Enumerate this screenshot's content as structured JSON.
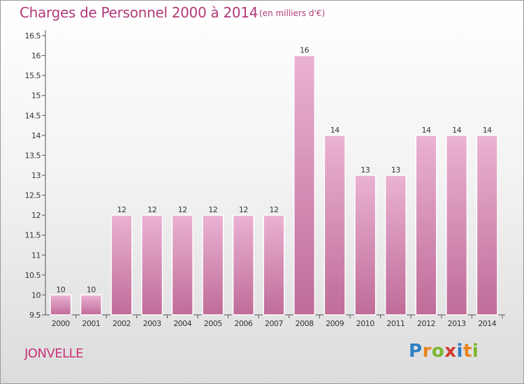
{
  "title": "Charges de Personnel 2000 à 2014",
  "subtitle": "(en milliers d'€)",
  "place": "JONVELLE",
  "brand": {
    "letters": [
      "P",
      "r",
      "o",
      "x",
      "i",
      "t",
      "i"
    ],
    "colors": [
      "#2e7fc4",
      "#e8841c",
      "#7ab82e",
      "#d23a2e",
      "#2e7fc4",
      "#e8841c",
      "#7ab82e"
    ]
  },
  "colors": {
    "bar_light": "#eab2d3",
    "bar_dark": "#c06e9a",
    "text_accent": "#b03a78"
  },
  "chart_data": {
    "type": "bar",
    "categories": [
      "2000",
      "2001",
      "2002",
      "2003",
      "2004",
      "2005",
      "2006",
      "2007",
      "2008",
      "2009",
      "2010",
      "2011",
      "2012",
      "2013",
      "2014"
    ],
    "values": [
      10,
      10,
      12,
      12,
      12,
      12,
      12,
      12,
      16,
      14,
      13,
      13,
      14,
      14,
      14
    ],
    "data_labels": [
      "10",
      "10",
      "12",
      "12",
      "12",
      "12",
      "12",
      "12",
      "16",
      "14",
      "13",
      "13",
      "14",
      "14",
      "14"
    ],
    "ylim": [
      9.5,
      16.5
    ],
    "yticks": [
      "9.5",
      "10",
      "10.5",
      "11",
      "11.5",
      "12",
      "12.5",
      "13",
      "13.5",
      "14",
      "14.5",
      "15",
      "15.5",
      "16",
      "16.5"
    ],
    "grid": false
  }
}
